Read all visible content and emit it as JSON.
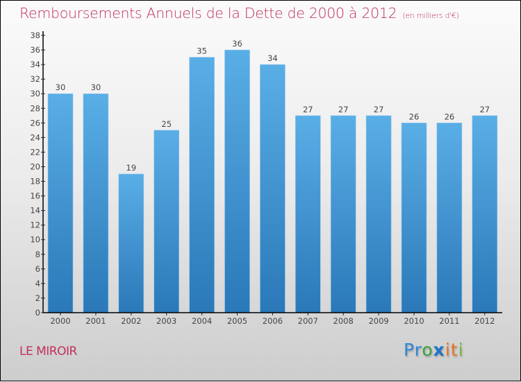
{
  "header": {
    "title": "Remboursements Annuels de la Dette de 2000 à 2012",
    "subtitle": "(en milliers d'€)"
  },
  "footer": {
    "town": "LE MIROIR",
    "logo": {
      "letters": [
        {
          "ch": "P",
          "color": "#2e86d6"
        },
        {
          "ch": "r",
          "color": "#2e86d6"
        },
        {
          "ch": "o",
          "color": "#3ca13c"
        },
        {
          "ch": "x",
          "color": "#1e73c8"
        },
        {
          "ch": "i",
          "color": "#e8731e"
        },
        {
          "ch": "t",
          "color": "#e8731e"
        },
        {
          "ch": "i",
          "color": "#7ab83a"
        }
      ]
    }
  },
  "colors": {
    "title": "#c0305a",
    "bar_top": "#5aaee6",
    "bar_bottom": "#2a78b8",
    "axis": "#000000"
  },
  "chart_data": {
    "type": "bar",
    "title": "Remboursements Annuels de la Dette de 2000 à 2012",
    "subtitle": "(en milliers d'€)",
    "xlabel": "",
    "ylabel": "",
    "categories": [
      "2000",
      "2001",
      "2002",
      "2003",
      "2004",
      "2005",
      "2006",
      "2007",
      "2008",
      "2009",
      "2010",
      "2011",
      "2012"
    ],
    "values": [
      30,
      30,
      19,
      25,
      35,
      36,
      34,
      27,
      27,
      27,
      26,
      26,
      27
    ],
    "ylim": [
      0,
      38
    ],
    "yticks": [
      0,
      2,
      4,
      6,
      8,
      10,
      12,
      14,
      16,
      18,
      20,
      22,
      24,
      26,
      28,
      30,
      32,
      34,
      36,
      38
    ],
    "grid": false,
    "legend": "none",
    "data_labels": true
  }
}
